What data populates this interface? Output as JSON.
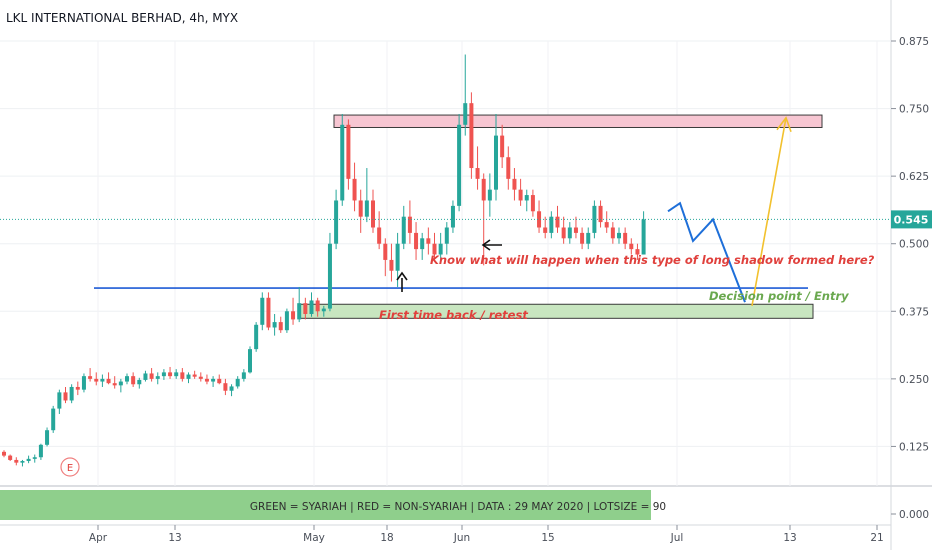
{
  "header": {
    "title": "LKL INTERNATIONAL BERHAD, 4h, MYX"
  },
  "price_axis": {
    "ticks": [
      "0.875",
      "0.750",
      "0.625",
      "0.500",
      "0.375",
      "0.250",
      "0.125"
    ],
    "current_price": "0.545"
  },
  "time_axis": {
    "labels": [
      "Apr",
      "13",
      "May",
      "18",
      "Jun",
      "15",
      "Jul",
      "13",
      "21"
    ]
  },
  "indicator_pane": {
    "banner": "GREEN = SYARIAH   |   RED = NON-SYARIAH   |  DATA : 29 MAY 2020   |  LOTSIZE = 90",
    "axis_value": "0.000"
  },
  "earnings_marker": "E",
  "annotations": {
    "retest": "First time back / retest",
    "long_shadow": "Know what will happen when this type of long shadow formed here?",
    "decision": "Decision point / Entry"
  },
  "colors": {
    "up": "#26a69a",
    "down": "#ef5350",
    "resistance_fill": "#f7c6d2",
    "support_fill": "#c8e6c0",
    "trendline": "#1e5bd6",
    "projection": "#1e6fd9",
    "target_arrow": "#f2c12e",
    "red_note": "#e0403c",
    "green_note": "#6aa84f",
    "banner_fill": "#8fcf8c"
  },
  "chart_data": {
    "type": "candlestick",
    "symbol": "LKL INTERNATIONAL BERHAD",
    "interval": "4h",
    "exchange": "MYX",
    "ylim": [
      0.0,
      0.92
    ],
    "yticks": [
      0.875,
      0.75,
      0.625,
      0.5,
      0.375,
      0.25,
      0.125
    ],
    "x_tick_labels": [
      "Apr",
      "13",
      "May",
      "18",
      "Jun",
      "15",
      "Jul",
      "13",
      "21"
    ],
    "last_price": 0.545,
    "candles": [
      [
        0.115,
        0.118,
        0.105,
        0.108
      ],
      [
        0.108,
        0.11,
        0.098,
        0.1
      ],
      [
        0.1,
        0.105,
        0.09,
        0.095
      ],
      [
        0.095,
        0.1,
        0.088,
        0.098
      ],
      [
        0.098,
        0.108,
        0.094,
        0.102
      ],
      [
        0.102,
        0.11,
        0.095,
        0.105
      ],
      [
        0.105,
        0.13,
        0.1,
        0.128
      ],
      [
        0.128,
        0.16,
        0.125,
        0.155
      ],
      [
        0.155,
        0.2,
        0.15,
        0.195
      ],
      [
        0.195,
        0.23,
        0.185,
        0.225
      ],
      [
        0.225,
        0.235,
        0.205,
        0.21
      ],
      [
        0.21,
        0.24,
        0.205,
        0.235
      ],
      [
        0.235,
        0.245,
        0.22,
        0.23
      ],
      [
        0.23,
        0.26,
        0.225,
        0.255
      ],
      [
        0.255,
        0.27,
        0.245,
        0.25
      ],
      [
        0.25,
        0.262,
        0.238,
        0.245
      ],
      [
        0.245,
        0.258,
        0.235,
        0.25
      ],
      [
        0.25,
        0.262,
        0.24,
        0.242
      ],
      [
        0.242,
        0.255,
        0.232,
        0.238
      ],
      [
        0.238,
        0.25,
        0.225,
        0.245
      ],
      [
        0.245,
        0.26,
        0.24,
        0.255
      ],
      [
        0.255,
        0.262,
        0.235,
        0.24
      ],
      [
        0.24,
        0.252,
        0.232,
        0.248
      ],
      [
        0.248,
        0.265,
        0.245,
        0.26
      ],
      [
        0.26,
        0.27,
        0.245,
        0.25
      ],
      [
        0.25,
        0.262,
        0.24,
        0.255
      ],
      [
        0.255,
        0.268,
        0.248,
        0.262
      ],
      [
        0.262,
        0.272,
        0.25,
        0.255
      ],
      [
        0.255,
        0.268,
        0.25,
        0.262
      ],
      [
        0.262,
        0.27,
        0.245,
        0.25
      ],
      [
        0.25,
        0.262,
        0.242,
        0.258
      ],
      [
        0.258,
        0.265,
        0.25,
        0.254
      ],
      [
        0.254,
        0.262,
        0.245,
        0.25
      ],
      [
        0.25,
        0.258,
        0.24,
        0.245
      ],
      [
        0.245,
        0.255,
        0.235,
        0.25
      ],
      [
        0.25,
        0.258,
        0.24,
        0.242
      ],
      [
        0.242,
        0.25,
        0.22,
        0.228
      ],
      [
        0.228,
        0.24,
        0.218,
        0.236
      ],
      [
        0.236,
        0.255,
        0.232,
        0.25
      ],
      [
        0.25,
        0.268,
        0.245,
        0.262
      ],
      [
        0.262,
        0.31,
        0.26,
        0.305
      ],
      [
        0.305,
        0.355,
        0.3,
        0.35
      ],
      [
        0.35,
        0.41,
        0.34,
        0.4
      ],
      [
        0.4,
        0.41,
        0.34,
        0.345
      ],
      [
        0.345,
        0.37,
        0.33,
        0.355
      ],
      [
        0.355,
        0.365,
        0.335,
        0.34
      ],
      [
        0.34,
        0.38,
        0.335,
        0.375
      ],
      [
        0.375,
        0.4,
        0.35,
        0.36
      ],
      [
        0.36,
        0.42,
        0.355,
        0.39
      ],
      [
        0.39,
        0.4,
        0.36,
        0.37
      ],
      [
        0.37,
        0.41,
        0.365,
        0.395
      ],
      [
        0.395,
        0.4,
        0.365,
        0.375
      ],
      [
        0.375,
        0.385,
        0.365,
        0.38
      ],
      [
        0.38,
        0.52,
        0.375,
        0.5
      ],
      [
        0.5,
        0.6,
        0.49,
        0.58
      ],
      [
        0.58,
        0.74,
        0.57,
        0.72
      ],
      [
        0.72,
        0.73,
        0.6,
        0.62
      ],
      [
        0.62,
        0.65,
        0.56,
        0.58
      ],
      [
        0.58,
        0.6,
        0.52,
        0.55
      ],
      [
        0.55,
        0.64,
        0.54,
        0.58
      ],
      [
        0.58,
        0.6,
        0.52,
        0.53
      ],
      [
        0.53,
        0.56,
        0.49,
        0.5
      ],
      [
        0.5,
        0.51,
        0.44,
        0.47
      ],
      [
        0.47,
        0.5,
        0.43,
        0.45
      ],
      [
        0.45,
        0.52,
        0.42,
        0.5
      ],
      [
        0.5,
        0.57,
        0.49,
        0.55
      ],
      [
        0.55,
        0.58,
        0.5,
        0.52
      ],
      [
        0.52,
        0.54,
        0.47,
        0.49
      ],
      [
        0.49,
        0.52,
        0.47,
        0.51
      ],
      [
        0.51,
        0.53,
        0.48,
        0.5
      ],
      [
        0.5,
        0.52,
        0.47,
        0.48
      ],
      [
        0.48,
        0.52,
        0.47,
        0.5
      ],
      [
        0.5,
        0.54,
        0.48,
        0.53
      ],
      [
        0.53,
        0.58,
        0.52,
        0.57
      ],
      [
        0.57,
        0.74,
        0.56,
        0.72
      ],
      [
        0.72,
        0.85,
        0.7,
        0.76
      ],
      [
        0.76,
        0.78,
        0.62,
        0.64
      ],
      [
        0.64,
        0.68,
        0.6,
        0.62
      ],
      [
        0.62,
        0.63,
        0.46,
        0.58
      ],
      [
        0.58,
        0.63,
        0.55,
        0.6
      ],
      [
        0.6,
        0.74,
        0.58,
        0.7
      ],
      [
        0.7,
        0.72,
        0.64,
        0.66
      ],
      [
        0.66,
        0.68,
        0.6,
        0.62
      ],
      [
        0.62,
        0.64,
        0.58,
        0.6
      ],
      [
        0.6,
        0.62,
        0.57,
        0.58
      ],
      [
        0.58,
        0.6,
        0.56,
        0.59
      ],
      [
        0.59,
        0.6,
        0.55,
        0.56
      ],
      [
        0.56,
        0.58,
        0.52,
        0.53
      ],
      [
        0.53,
        0.55,
        0.51,
        0.52
      ],
      [
        0.52,
        0.56,
        0.51,
        0.55
      ],
      [
        0.55,
        0.57,
        0.52,
        0.53
      ],
      [
        0.53,
        0.55,
        0.5,
        0.51
      ],
      [
        0.51,
        0.54,
        0.5,
        0.53
      ],
      [
        0.53,
        0.55,
        0.51,
        0.52
      ],
      [
        0.52,
        0.53,
        0.49,
        0.5
      ],
      [
        0.5,
        0.53,
        0.49,
        0.52
      ],
      [
        0.52,
        0.58,
        0.51,
        0.57
      ],
      [
        0.57,
        0.58,
        0.53,
        0.54
      ],
      [
        0.54,
        0.56,
        0.52,
        0.53
      ],
      [
        0.53,
        0.54,
        0.5,
        0.51
      ],
      [
        0.51,
        0.53,
        0.5,
        0.52
      ],
      [
        0.52,
        0.53,
        0.49,
        0.5
      ],
      [
        0.5,
        0.51,
        0.48,
        0.49
      ],
      [
        0.49,
        0.5,
        0.47,
        0.48
      ],
      [
        0.48,
        0.56,
        0.48,
        0.545
      ]
    ],
    "zones": [
      {
        "role": "resistance",
        "low": 0.715,
        "high": 0.738
      },
      {
        "role": "support",
        "low": 0.362,
        "high": 0.388
      }
    ],
    "horizontal_lines": [
      {
        "value": 0.418
      }
    ],
    "projection_path": [
      0.56,
      0.575,
      0.505,
      0.545,
      0.392
    ],
    "target_arrow": {
      "from": 0.385,
      "to": 0.733
    }
  }
}
